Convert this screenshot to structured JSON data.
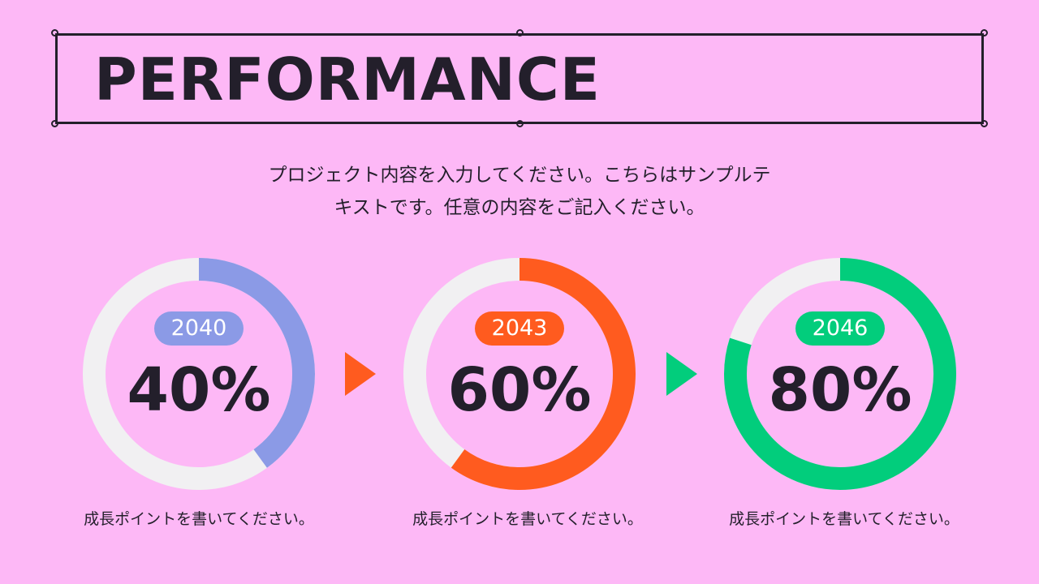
{
  "colors": {
    "background": "#fdb8f6",
    "ink": "#231f2b",
    "track": "#f1f0f2"
  },
  "header": {
    "title": "PERFORMANCE"
  },
  "intro": {
    "line1": "プロジェクト内容を入力してください。こちらはサンプルテ",
    "line2": "キストです。任意の内容をご記入ください。"
  },
  "items": [
    {
      "year": "2040",
      "percent_label": "40%",
      "value": 0.4,
      "color": "#8b9ae6",
      "caption": "成長ポイントを書いてください。"
    },
    {
      "year": "2043",
      "percent_label": "60%",
      "value": 0.6,
      "color": "#ff5b1f",
      "caption": "成長ポイントを書いてください。"
    },
    {
      "year": "2046",
      "percent_label": "80%",
      "value": 0.8,
      "color": "#02cd7c",
      "caption": "成長ポイントを書いてください。"
    }
  ],
  "arrows": [
    {
      "icon": "triangle-right-icon",
      "color": "#ff5b1f"
    },
    {
      "icon": "triangle-right-icon",
      "color": "#02cd7c"
    }
  ]
}
